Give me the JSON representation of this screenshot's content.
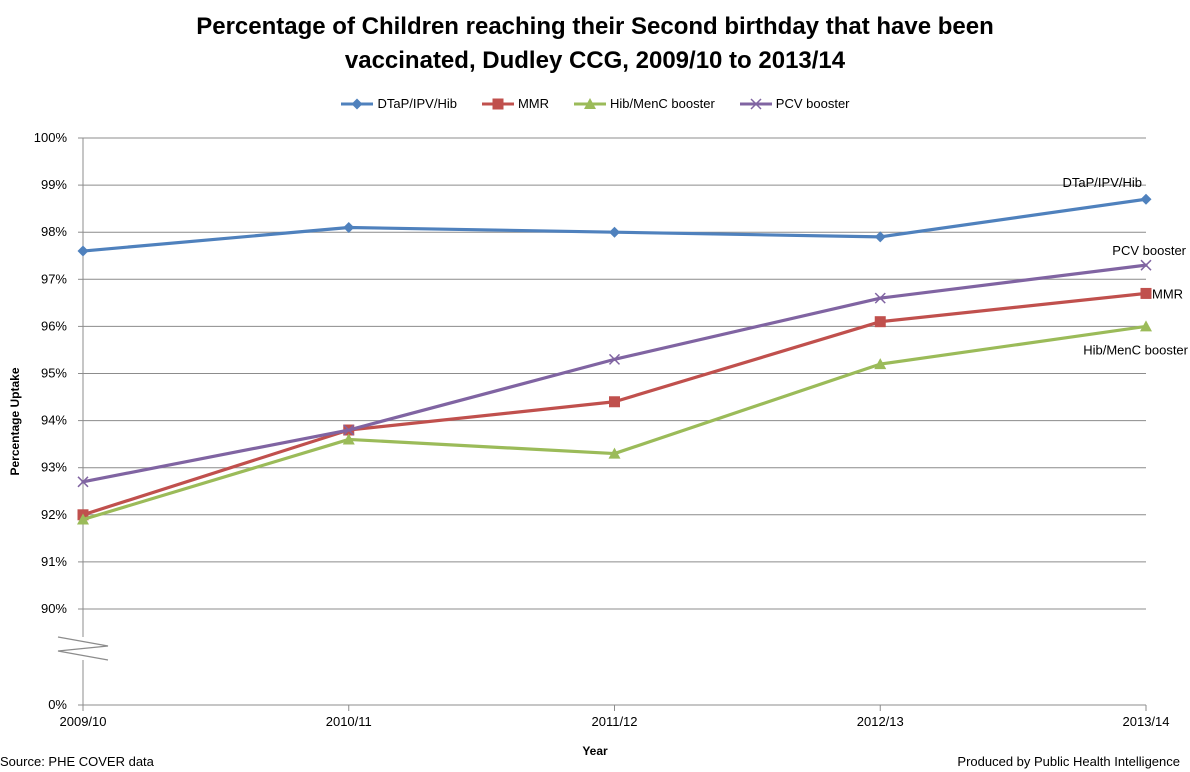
{
  "chart_data": {
    "type": "line",
    "title": "Percentage of Children reaching their Second birthday that have been vaccinated, Dudley CCG, 2009/10 to 2013/14",
    "title_lines": [
      "Percentage of Children reaching their Second birthday that have been",
      "vaccinated, Dudley CCG, 2009/10 to 2013/14"
    ],
    "xlabel": "Year",
    "ylabel": "Percentage Uptake",
    "categories": [
      "2009/10",
      "2010/11",
      "2011/12",
      "2012/13",
      "2013/14"
    ],
    "y_ticks": [
      "100%",
      "99%",
      "98%",
      "97%",
      "96%",
      "95%",
      "94%",
      "93%",
      "92%",
      "91%",
      "90%",
      "0%"
    ],
    "ylim": [
      90,
      100
    ],
    "y_axis_break": true,
    "grid": true,
    "legend_position": "top",
    "series": [
      {
        "name": "DTaP/IPV/Hib",
        "values": [
          97.6,
          98.1,
          98.0,
          97.9,
          98.7
        ],
        "color": "#4F81BD",
        "marker": "diamond",
        "end_label": "DTaP/IPV/Hib"
      },
      {
        "name": "MMR",
        "values": [
          92.0,
          93.8,
          94.4,
          96.1,
          96.7
        ],
        "color": "#C0504D",
        "marker": "square",
        "end_label": "MMR"
      },
      {
        "name": "Hib/MenC booster",
        "values": [
          91.9,
          93.6,
          93.3,
          95.2,
          96.0
        ],
        "color": "#9BBB59",
        "marker": "triangle",
        "end_label": "Hib/MenC booster"
      },
      {
        "name": "PCV booster",
        "values": [
          92.7,
          93.8,
          95.3,
          96.6,
          97.3
        ],
        "color": "#8064A2",
        "marker": "x",
        "end_label": "PCV booster"
      }
    ]
  },
  "footer": {
    "source": "Source: PHE COVER  data",
    "produced_by": "Produced by Public Health Intelligence"
  }
}
